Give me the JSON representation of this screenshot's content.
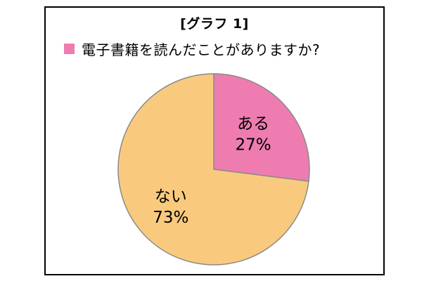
{
  "chart_data": {
    "type": "pie",
    "title": "[グラフ 1]",
    "legend": {
      "placement": "top-left",
      "entries": [
        {
          "label": "電子書籍を読んだことがありますか?",
          "color": "#ee7cb0"
        }
      ]
    },
    "slices": [
      {
        "label": "ある",
        "value": 27,
        "value_text": "27%",
        "color": "#ee7cb0"
      },
      {
        "label": "ない",
        "value": 73,
        "value_text": "73%",
        "color": "#f9ca7e"
      }
    ],
    "start_angle": "12 o'clock",
    "direction": "clockwise",
    "stroke_color": "#8a8a8a"
  }
}
